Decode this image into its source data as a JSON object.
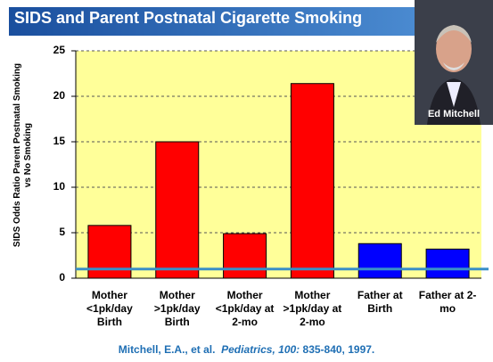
{
  "chart_data": {
    "type": "bar",
    "title": "SIDS and Parent Postnatal Cigarette Smoking",
    "ylabel": "SIDS Odds Ratio Parent Postnatal Smoking vs No Smoking",
    "categories": [
      "Mother <1pk/day Birth",
      "Mother >1pk/day Birth",
      "Mother <1pk/day at 2-mo",
      "Mother >1pk/day at 2-mo",
      "Father at Birth",
      "Father at 2-mo"
    ],
    "values": [
      5.8,
      15,
      4.9,
      21.4,
      3.8,
      3.2
    ],
    "colors": [
      "#ff0000",
      "#ff0000",
      "#ff0000",
      "#ff0000",
      "#0000ff",
      "#0000ff"
    ],
    "ylim": [
      0,
      25
    ],
    "yticks": [
      0,
      5,
      10,
      15,
      20,
      25
    ],
    "grid": true,
    "reference_line": {
      "value": 1,
      "color": "#3a8fc7"
    },
    "source": [
      "Mitchell, E.A., et al.",
      "Pediatrics, 100:",
      "835-840, 1997."
    ]
  },
  "photo": {
    "caption": "Ed Mitchell"
  }
}
